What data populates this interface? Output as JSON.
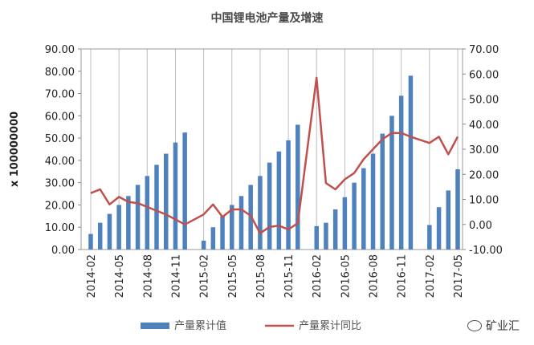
{
  "chart_data": {
    "type": "bar+line",
    "title": "中国锂电池产量及增速",
    "ylabel_left": "x 100000000",
    "ylim_left": [
      0,
      90
    ],
    "ylim_right": [
      -10,
      70
    ],
    "yticks_left": [
      "0.00",
      "10.00",
      "20.00",
      "30.00",
      "40.00",
      "50.00",
      "60.00",
      "70.00",
      "80.00",
      "90.00"
    ],
    "yticks_right": [
      "-10.00",
      "0.00",
      "10.00",
      "20.00",
      "30.00",
      "40.00",
      "50.00",
      "60.00",
      "70.00"
    ],
    "x": [
      "2014-02",
      "2014-03",
      "2014-04",
      "2014-05",
      "2014-06",
      "2014-07",
      "2014-08",
      "2014-09",
      "2014-10",
      "2014-11",
      "2014-12",
      "2015-02",
      "2015-03",
      "2015-04",
      "2015-05",
      "2015-06",
      "2015-07",
      "2015-08",
      "2015-09",
      "2015-10",
      "2015-11",
      "2015-12",
      "2016-02",
      "2016-03",
      "2016-04",
      "2016-05",
      "2016-06",
      "2016-07",
      "2016-08",
      "2016-09",
      "2016-10",
      "2016-11",
      "2016-12",
      "2017-02",
      "2017-03",
      "2017-04",
      "2017-05"
    ],
    "xtick_labels": [
      "2014-02",
      "2014-05",
      "2014-08",
      "2014-11",
      "2015-02",
      "2015-05",
      "2015-08",
      "2015-11",
      "2016-02",
      "2016-05",
      "2016-08",
      "2016-11",
      "2017-02",
      "2017-05"
    ],
    "series": [
      {
        "name": "产量累计值",
        "type": "bar",
        "axis": "left",
        "color": "#4f81bd",
        "values": [
          7,
          12,
          16,
          20,
          24,
          29,
          33,
          38,
          43,
          48,
          52.5,
          4,
          10,
          15,
          20,
          24,
          29,
          33,
          39,
          44,
          49,
          56,
          10.5,
          12,
          18,
          23.5,
          30,
          36.5,
          43,
          52,
          60,
          69,
          78,
          11,
          19,
          26.5,
          36
        ]
      },
      {
        "name": "产量累计同比",
        "type": "line",
        "axis": "right",
        "color": "#c0504d",
        "values": [
          12.5,
          14,
          8,
          11,
          9,
          8.5,
          7,
          5.5,
          4,
          2,
          0,
          4,
          8,
          3,
          6,
          6,
          3.5,
          -3.5,
          -1,
          -0.5,
          -2,
          0.5,
          58.5,
          16.5,
          14,
          18,
          20.5,
          26,
          30,
          34,
          36.5,
          36.5,
          35,
          32.5,
          35,
          28,
          35
        ]
      }
    ],
    "legend": "bottom",
    "grid": "vertical"
  },
  "watermark": {
    "text": "矿业汇",
    "icon": "wechat-icon"
  }
}
